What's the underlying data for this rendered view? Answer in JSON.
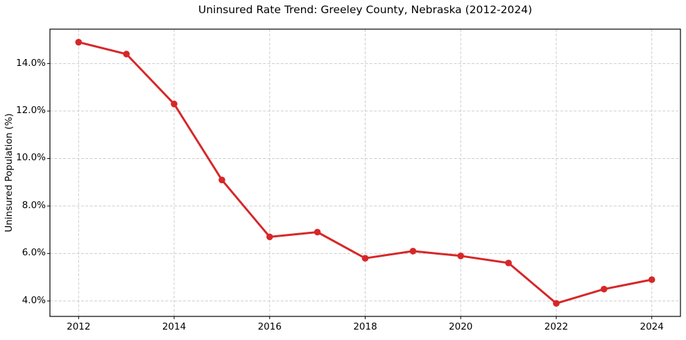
{
  "chart_data": {
    "type": "line",
    "title": "Uninsured Rate Trend: Greeley County, Nebraska (2012-2024)",
    "xlabel": "",
    "ylabel": "Uninsured Population (%)",
    "x": [
      2012,
      2013,
      2014,
      2015,
      2016,
      2017,
      2018,
      2019,
      2020,
      2021,
      2022,
      2023,
      2024
    ],
    "series": [
      {
        "name": "Uninsured rate",
        "values": [
          14.9,
          14.4,
          12.3,
          9.1,
          6.7,
          6.9,
          5.8,
          6.1,
          5.9,
          5.6,
          3.9,
          4.5,
          4.9
        ]
      }
    ],
    "xlim": [
      2011.4,
      2024.6
    ],
    "ylim": [
      3.35,
      15.45
    ],
    "x_ticks": [
      2012,
      2014,
      2016,
      2018,
      2020,
      2022,
      2024
    ],
    "y_ticks": [
      4.0,
      6.0,
      8.0,
      10.0,
      12.0,
      14.0
    ],
    "y_tick_labels": [
      "4.0%",
      "6.0%",
      "8.0%",
      "10.0%",
      "12.0%",
      "14.0%"
    ],
    "x_tick_labels": [
      "2012",
      "2014",
      "2016",
      "2018",
      "2020",
      "2022",
      "2024"
    ],
    "grid": true,
    "grid_style": "dashed",
    "legend_position": "none",
    "colors": {
      "line": "#d62728",
      "marker": "#d62728",
      "grid": "#cccccc",
      "spine": "#000000",
      "background": "#ffffff",
      "text": "#000000"
    }
  }
}
